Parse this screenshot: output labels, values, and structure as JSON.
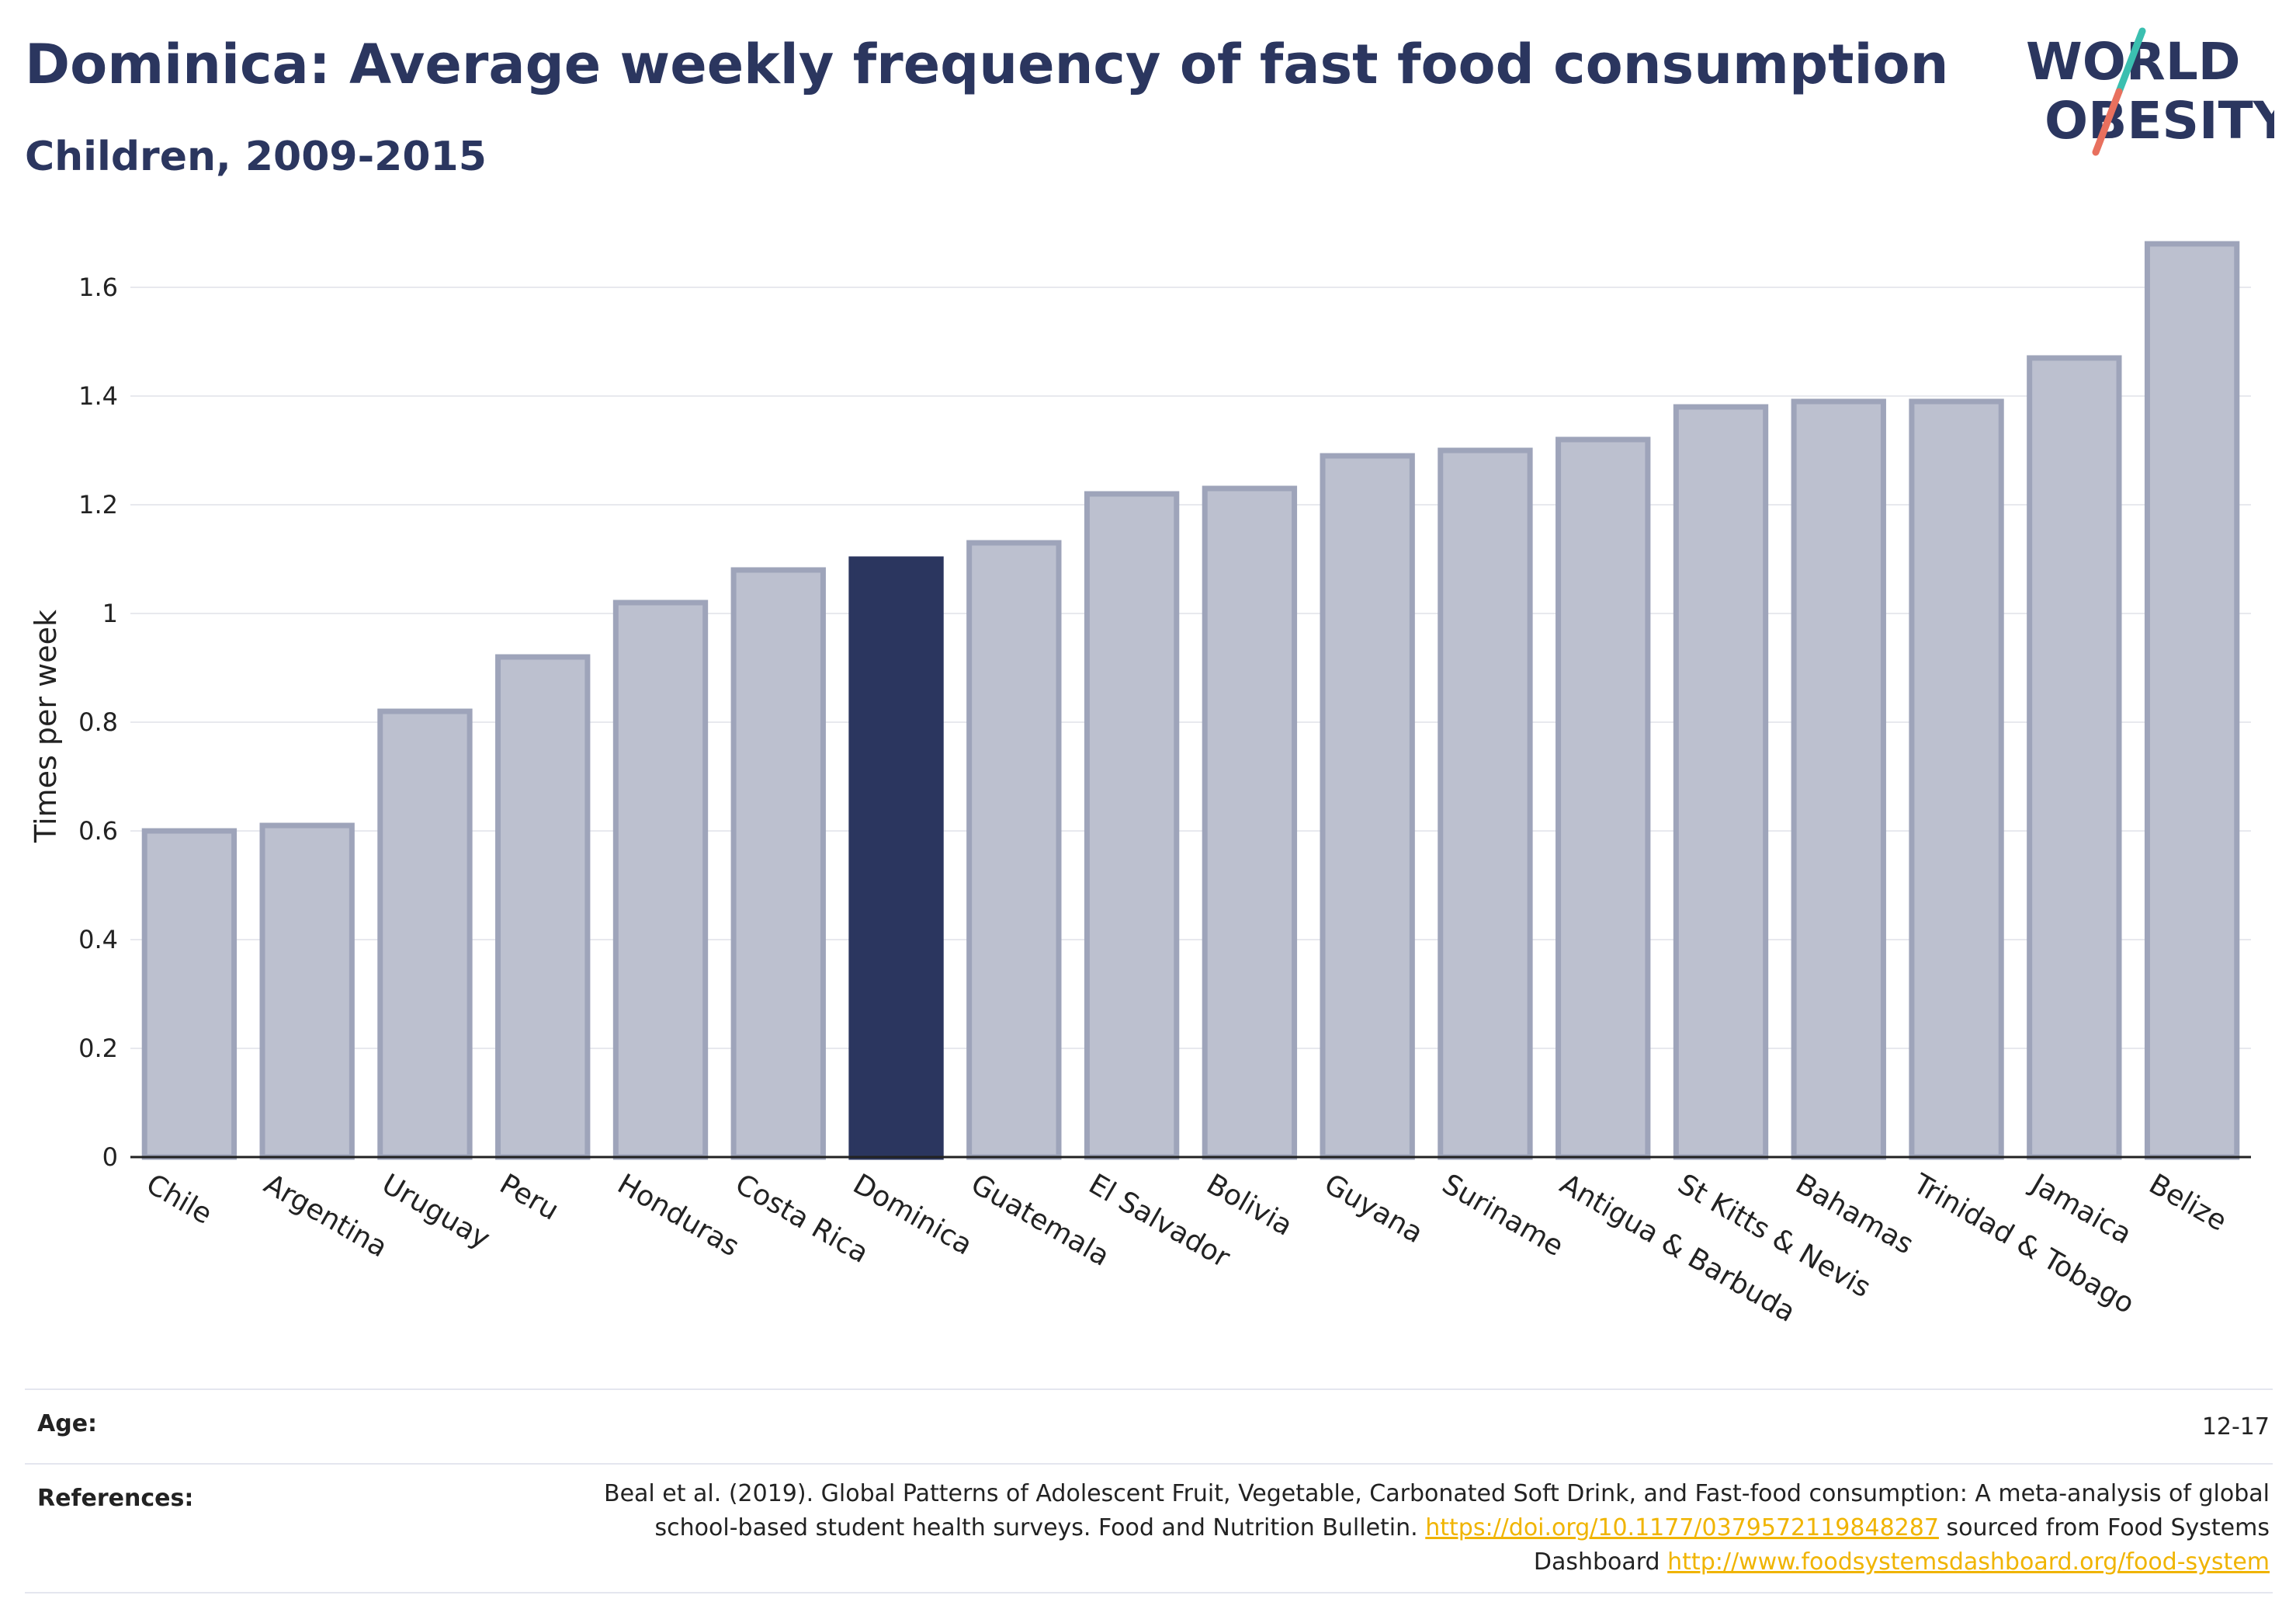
{
  "header": {
    "title": "Dominica: Average weekly frequency of fast food consumption",
    "subtitle": "Children, 2009-2015"
  },
  "logo": {
    "line1": "WORLD",
    "line2": "OBESITY",
    "colors": {
      "text": "#2b365f",
      "slash_top": "#3bbfb0",
      "slash_bottom": "#e8705e"
    }
  },
  "colors": {
    "bar": "#bcc0cf",
    "bar_border": "#9ea4ba",
    "highlight": "#2b365f",
    "grid": "#e8e9ee",
    "axis": "#222222",
    "link": "#f0b400"
  },
  "chart_data": {
    "type": "bar",
    "ylabel": "Times per week",
    "ylim": [
      0,
      1.7
    ],
    "yticks": [
      0,
      0.2,
      0.4,
      0.6,
      0.8,
      1,
      1.2,
      1.4,
      1.6
    ],
    "ytick_labels": [
      "0",
      "0.2",
      "0.4",
      "0.6",
      "0.8",
      "1",
      "1.2",
      "1.4",
      "1.6"
    ],
    "grid": true,
    "highlight": "Dominica",
    "categories": [
      "Chile",
      "Argentina",
      "Uruguay",
      "Peru",
      "Honduras",
      "Costa Rica",
      "Dominica",
      "Guatemala",
      "El Salvador",
      "Bolivia",
      "Guyana",
      "Suriname",
      "Antigua & Barbuda",
      "St Kitts & Nevis",
      "Bahamas",
      "Trinidad & Tobago",
      "Jamaica",
      "Belize"
    ],
    "values": [
      0.6,
      0.61,
      0.82,
      0.92,
      1.02,
      1.08,
      1.1,
      1.13,
      1.22,
      1.23,
      1.29,
      1.3,
      1.32,
      1.38,
      1.39,
      1.39,
      1.47,
      1.68
    ]
  },
  "info": {
    "age_label": "Age:",
    "age_value": "12-17",
    "references_label": "References:",
    "ref_text_1": "Beal et al. (2019). Global Patterns of Adolescent Fruit, Vegetable, Carbonated Soft Drink, and Fast-food consumption: A meta-analysis of global school-based student health surveys. Food and Nutrition Bulletin.",
    "ref_link_1": "https://doi.org/10.1177/0379572119848287",
    "ref_text_2": "sourced from Food Systems Dashboard",
    "ref_link_2": "http://www.foodsystemsdashboard.org/food-system"
  }
}
